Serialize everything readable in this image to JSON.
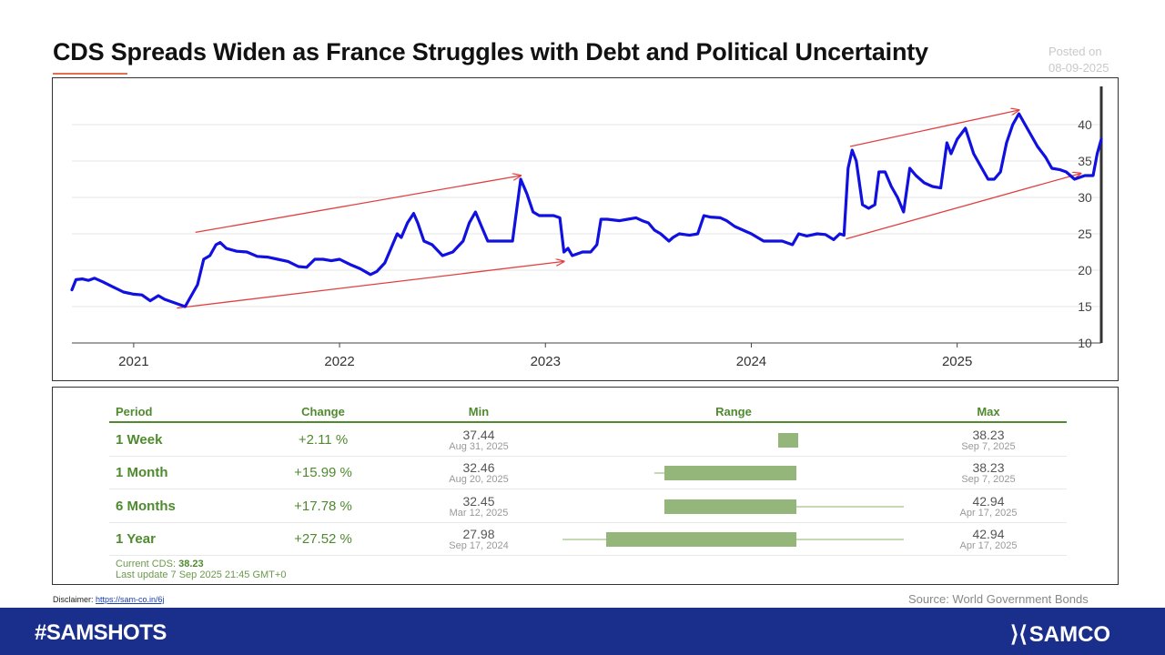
{
  "header": {
    "title": "CDS Spreads Widen as France Struggles with Debt and Political Uncertainty",
    "posted_label": "Posted on",
    "posted_date": "08-09-2025"
  },
  "chart_data": {
    "type": "line",
    "title": "",
    "xlabel": "",
    "ylabel": "",
    "x_ticks": [
      "2021",
      "2022",
      "2023",
      "2024",
      "2025"
    ],
    "y_ticks": [
      10,
      15,
      20,
      25,
      30,
      35,
      40
    ],
    "ylim": [
      10,
      44
    ],
    "xlim": [
      2020.7,
      2025.7
    ],
    "grid": "horizontal",
    "line_color": "#1010e0",
    "arrow_color": "#e04040",
    "series": [
      {
        "name": "",
        "points": [
          [
            2020.7,
            17.3
          ],
          [
            2020.72,
            18.7
          ],
          [
            2020.75,
            18.8
          ],
          [
            2020.78,
            18.6
          ],
          [
            2020.81,
            18.9
          ],
          [
            2020.85,
            18.4
          ],
          [
            2020.9,
            17.7
          ],
          [
            2020.95,
            17.0
          ],
          [
            2021.0,
            16.7
          ],
          [
            2021.04,
            16.6
          ],
          [
            2021.08,
            15.8
          ],
          [
            2021.12,
            16.5
          ],
          [
            2021.15,
            16.0
          ],
          [
            2021.2,
            15.5
          ],
          [
            2021.25,
            15.0
          ],
          [
            2021.28,
            16.5
          ],
          [
            2021.31,
            18.0
          ],
          [
            2021.34,
            21.5
          ],
          [
            2021.37,
            22.0
          ],
          [
            2021.4,
            23.5
          ],
          [
            2021.42,
            23.8
          ],
          [
            2021.45,
            23.0
          ],
          [
            2021.5,
            22.6
          ],
          [
            2021.55,
            22.5
          ],
          [
            2021.6,
            21.9
          ],
          [
            2021.65,
            21.8
          ],
          [
            2021.7,
            21.5
          ],
          [
            2021.75,
            21.2
          ],
          [
            2021.8,
            20.5
          ],
          [
            2021.84,
            20.4
          ],
          [
            2021.88,
            21.5
          ],
          [
            2021.92,
            21.5
          ],
          [
            2021.96,
            21.3
          ],
          [
            2022.0,
            21.5
          ],
          [
            2022.05,
            20.8
          ],
          [
            2022.1,
            20.2
          ],
          [
            2022.15,
            19.4
          ],
          [
            2022.18,
            19.8
          ],
          [
            2022.22,
            21.0
          ],
          [
            2022.25,
            23.0
          ],
          [
            2022.28,
            25.0
          ],
          [
            2022.3,
            24.5
          ],
          [
            2022.33,
            26.5
          ],
          [
            2022.36,
            27.8
          ],
          [
            2022.38,
            26.5
          ],
          [
            2022.41,
            24.0
          ],
          [
            2022.45,
            23.5
          ],
          [
            2022.5,
            22.0
          ],
          [
            2022.55,
            22.5
          ],
          [
            2022.6,
            24.0
          ],
          [
            2022.63,
            26.5
          ],
          [
            2022.66,
            28.0
          ],
          [
            2022.69,
            26.0
          ],
          [
            2022.72,
            24.0
          ],
          [
            2022.76,
            24.0
          ],
          [
            2022.8,
            24.0
          ],
          [
            2022.84,
            24.0
          ],
          [
            2022.88,
            32.5
          ],
          [
            2022.91,
            30.5
          ],
          [
            2022.94,
            28.0
          ],
          [
            2022.97,
            27.5
          ],
          [
            2023.0,
            27.5
          ],
          [
            2023.04,
            27.5
          ],
          [
            2023.07,
            27.2
          ],
          [
            2023.09,
            22.5
          ],
          [
            2023.11,
            23.0
          ],
          [
            2023.13,
            22.0
          ],
          [
            2023.18,
            22.5
          ],
          [
            2023.22,
            22.5
          ],
          [
            2023.25,
            23.5
          ],
          [
            2023.27,
            27.0
          ],
          [
            2023.3,
            27.0
          ],
          [
            2023.36,
            26.8
          ],
          [
            2023.4,
            27.0
          ],
          [
            2023.44,
            27.2
          ],
          [
            2023.47,
            26.8
          ],
          [
            2023.5,
            26.5
          ],
          [
            2023.53,
            25.5
          ],
          [
            2023.56,
            25.0
          ],
          [
            2023.6,
            24.0
          ],
          [
            2023.62,
            24.5
          ],
          [
            2023.65,
            25.0
          ],
          [
            2023.7,
            24.8
          ],
          [
            2023.74,
            25.0
          ],
          [
            2023.77,
            27.5
          ],
          [
            2023.8,
            27.3
          ],
          [
            2023.85,
            27.2
          ],
          [
            2023.88,
            26.8
          ],
          [
            2023.92,
            26.0
          ],
          [
            2023.96,
            25.5
          ],
          [
            2024.0,
            25.0
          ],
          [
            2024.03,
            24.5
          ],
          [
            2024.06,
            24.0
          ],
          [
            2024.1,
            24.0
          ],
          [
            2024.15,
            24.0
          ],
          [
            2024.2,
            23.5
          ],
          [
            2024.23,
            25.0
          ],
          [
            2024.27,
            24.7
          ],
          [
            2024.32,
            25.0
          ],
          [
            2024.36,
            24.9
          ],
          [
            2024.4,
            24.2
          ],
          [
            2024.43,
            25.0
          ],
          [
            2024.45,
            24.8
          ],
          [
            2024.47,
            34.0
          ],
          [
            2024.49,
            36.5
          ],
          [
            2024.51,
            35.0
          ],
          [
            2024.54,
            29.0
          ],
          [
            2024.57,
            28.5
          ],
          [
            2024.6,
            29.0
          ],
          [
            2024.62,
            33.5
          ],
          [
            2024.65,
            33.5
          ],
          [
            2024.68,
            31.5
          ],
          [
            2024.71,
            30.0
          ],
          [
            2024.74,
            28.0
          ],
          [
            2024.77,
            34.0
          ],
          [
            2024.8,
            33.0
          ],
          [
            2024.84,
            32.0
          ],
          [
            2024.88,
            31.5
          ],
          [
            2024.92,
            31.3
          ],
          [
            2024.95,
            37.5
          ],
          [
            2024.97,
            36.0
          ],
          [
            2025.0,
            38.0
          ],
          [
            2025.04,
            39.5
          ],
          [
            2025.08,
            36.0
          ],
          [
            2025.12,
            34.0
          ],
          [
            2025.15,
            32.5
          ],
          [
            2025.18,
            32.5
          ],
          [
            2025.21,
            33.5
          ],
          [
            2025.24,
            37.5
          ],
          [
            2025.27,
            40.0
          ],
          [
            2025.3,
            41.5
          ],
          [
            2025.33,
            40.0
          ],
          [
            2025.36,
            38.5
          ],
          [
            2025.39,
            37.0
          ],
          [
            2025.43,
            35.5
          ],
          [
            2025.46,
            34.0
          ],
          [
            2025.5,
            33.8
          ],
          [
            2025.53,
            33.5
          ],
          [
            2025.57,
            32.5
          ],
          [
            2025.62,
            33.0
          ],
          [
            2025.66,
            33.0
          ],
          [
            2025.68,
            36.0
          ],
          [
            2025.7,
            38.0
          ]
        ]
      }
    ],
    "annotations": [
      {
        "type": "arrow",
        "from": [
          2021.3,
          25.2
        ],
        "to": [
          2022.88,
          33.0
        ]
      },
      {
        "type": "arrow",
        "from": [
          2021.21,
          14.8
        ],
        "to": [
          2023.09,
          21.2
        ]
      },
      {
        "type": "arrow",
        "from": [
          2024.48,
          37.0
        ],
        "to": [
          2025.3,
          42.0
        ]
      },
      {
        "type": "arrow",
        "from": [
          2024.46,
          24.3
        ],
        "to": [
          2025.6,
          33.3
        ]
      }
    ]
  },
  "table": {
    "headers": {
      "period": "Period",
      "change": "Change",
      "min": "Min",
      "range": "Range",
      "max": "Max"
    },
    "rows": [
      {
        "period": "1 Week",
        "change": "+2.11 %",
        "min": "37.44",
        "min_date": "Aug 31, 2025",
        "max": "38.23",
        "max_date": "Sep 7, 2025",
        "range": {
          "low": 37.44,
          "high": 38.23,
          "ext_low": 37.44,
          "ext_high": 38.23
        }
      },
      {
        "period": "1 Month",
        "change": "+15.99 %",
        "min": "32.46",
        "min_date": "Aug 20, 2025",
        "max": "38.23",
        "max_date": "Sep 7, 2025",
        "range": {
          "low": 32.46,
          "high": 38.23,
          "ext_low": 32.0,
          "ext_high": 38.23
        }
      },
      {
        "period": "6 Months",
        "change": "+17.78 %",
        "min": "32.45",
        "min_date": "Mar 12, 2025",
        "max": "42.94",
        "max_date": "Apr 17, 2025",
        "range": {
          "low": 32.45,
          "high": 38.23,
          "ext_low": 32.45,
          "ext_high": 42.94
        }
      },
      {
        "period": "1 Year",
        "change": "+27.52 %",
        "min": "27.98",
        "min_date": "Sep 17, 2024",
        "max": "42.94",
        "max_date": "Apr 17, 2025",
        "range": {
          "low": 29.9,
          "high": 38.23,
          "ext_low": 27.98,
          "ext_high": 42.94
        }
      }
    ],
    "range_scale": [
      27.98,
      42.94
    ],
    "current_label": "Current CDS:",
    "current_value": "38.23",
    "last_update": "Last update 7 Sep 2025 21:45 GMT+0"
  },
  "footer": {
    "disclaimer_label": "Disclaimer:",
    "disclaimer_link": "https://sam-co.in/6j",
    "source": "Source: World Government Bonds",
    "hashtag": "#SAMSHOTS",
    "brand": "SAMCO"
  }
}
